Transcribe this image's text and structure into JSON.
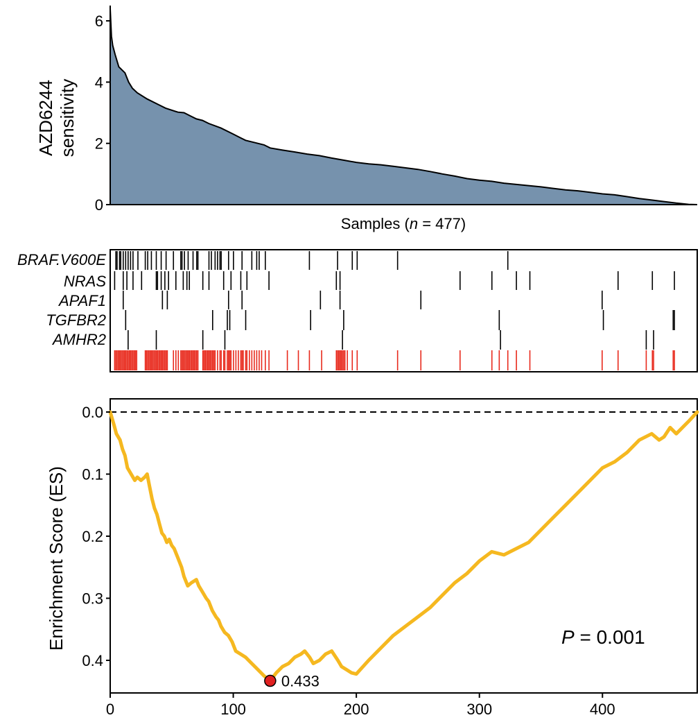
{
  "colors": {
    "sensitivity_fill": "#7692ad",
    "mutation_tick": "#000000",
    "combined_tick": "#e8291c",
    "es_line": "#f5b820",
    "min_point": "#e02020"
  },
  "chart_data": [
    {
      "type": "area",
      "title": "",
      "ylabel_line1": "AZD6244",
      "ylabel_line2": "sensitivity",
      "xlabel_prefix": "Samples (",
      "xlabel_n": "n",
      "xlabel_suffix": " = 477)",
      "n_samples": 477,
      "xlim": [
        0,
        477
      ],
      "ylim": [
        0,
        6.5
      ],
      "yticks": [
        0,
        2,
        4,
        6
      ],
      "ytick_labels": [
        "0",
        "2",
        "4",
        "6"
      ],
      "curve": [
        [
          0,
          6.4
        ],
        [
          1,
          5.5
        ],
        [
          2,
          5.2
        ],
        [
          4,
          4.9
        ],
        [
          7,
          4.5
        ],
        [
          12,
          4.3
        ],
        [
          15,
          4.0
        ],
        [
          18,
          3.8
        ],
        [
          22,
          3.65
        ],
        [
          30,
          3.45
        ],
        [
          40,
          3.25
        ],
        [
          45,
          3.15
        ],
        [
          55,
          3.02
        ],
        [
          60,
          3.0
        ],
        [
          65,
          2.9
        ],
        [
          70,
          2.8
        ],
        [
          75,
          2.75
        ],
        [
          80,
          2.65
        ],
        [
          90,
          2.5
        ],
        [
          100,
          2.3
        ],
        [
          105,
          2.2
        ],
        [
          110,
          2.1
        ],
        [
          118,
          2.02
        ],
        [
          125,
          1.95
        ],
        [
          130,
          1.85
        ],
        [
          140,
          1.78
        ],
        [
          150,
          1.72
        ],
        [
          160,
          1.65
        ],
        [
          170,
          1.6
        ],
        [
          180,
          1.52
        ],
        [
          190,
          1.45
        ],
        [
          200,
          1.38
        ],
        [
          210,
          1.33
        ],
        [
          220,
          1.3
        ],
        [
          230,
          1.25
        ],
        [
          240,
          1.2
        ],
        [
          250,
          1.15
        ],
        [
          260,
          1.08
        ],
        [
          270,
          1.0
        ],
        [
          280,
          0.93
        ],
        [
          290,
          0.85
        ],
        [
          300,
          0.8
        ],
        [
          310,
          0.76
        ],
        [
          320,
          0.7
        ],
        [
          330,
          0.66
        ],
        [
          340,
          0.62
        ],
        [
          350,
          0.58
        ],
        [
          360,
          0.53
        ],
        [
          370,
          0.48
        ],
        [
          380,
          0.45
        ],
        [
          390,
          0.4
        ],
        [
          400,
          0.35
        ],
        [
          410,
          0.32
        ],
        [
          420,
          0.26
        ],
        [
          430,
          0.2
        ],
        [
          440,
          0.15
        ],
        [
          450,
          0.1
        ],
        [
          460,
          0.05
        ],
        [
          470,
          0.01
        ],
        [
          477,
          0.0
        ]
      ]
    },
    {
      "type": "heatmap",
      "rows": [
        {
          "label": "BRAF.V600E",
          "positions": [
            3,
            4,
            6,
            7,
            9,
            11,
            13,
            15,
            17,
            21,
            27,
            29,
            32,
            36,
            40,
            44,
            50,
            56,
            57,
            59,
            62,
            66,
            69,
            70,
            79,
            81,
            84,
            86,
            88,
            89,
            95,
            99,
            106,
            114,
            118,
            120,
            125,
            161,
            184,
            196,
            200,
            233,
            323
          ]
        },
        {
          "label": "NRAS",
          "positions": [
            2,
            9,
            12,
            17,
            24,
            36,
            37,
            40,
            43,
            46,
            52,
            58,
            61,
            63,
            74,
            79,
            91,
            97,
            105,
            110,
            128,
            183,
            186,
            284,
            310,
            330,
            341,
            413,
            441,
            459
          ]
        },
        {
          "label": "APAF1",
          "positions": [
            9,
            41,
            45,
            95,
            106,
            170,
            186,
            252,
            400
          ]
        },
        {
          "label": "TGFBR2",
          "positions": [
            11,
            82,
            94,
            96,
            109,
            162,
            189,
            316,
            401,
            458,
            459
          ]
        },
        {
          "label": "AMHR2",
          "positions": [
            13,
            36,
            74,
            92,
            188,
            317,
            436,
            442
          ]
        },
        {
          "label": "",
          "combined": true,
          "positions": [
            2,
            3,
            4,
            5,
            6,
            7,
            8,
            9,
            10,
            11,
            12,
            13,
            14,
            15,
            16,
            17,
            18,
            19,
            20,
            27,
            28,
            29,
            30,
            31,
            32,
            33,
            34,
            35,
            36,
            37,
            38,
            39,
            40,
            41,
            42,
            43,
            44,
            45,
            50,
            52,
            54,
            56,
            57,
            58,
            59,
            60,
            61,
            62,
            63,
            64,
            65,
            66,
            67,
            68,
            69,
            70,
            74,
            75,
            76,
            77,
            78,
            79,
            80,
            81,
            82,
            83,
            84,
            86,
            88,
            89,
            91,
            92,
            94,
            95,
            96,
            97,
            99,
            101,
            103,
            105,
            106,
            107,
            109,
            110,
            112,
            114,
            116,
            118,
            120,
            122,
            125,
            128,
            143,
            152,
            161,
            171,
            183,
            184,
            185,
            186,
            187,
            188,
            189,
            190,
            192,
            196,
            200,
            233,
            252,
            284,
            310,
            316,
            323,
            330,
            341,
            400,
            413,
            436,
            441,
            442,
            458,
            459
          ]
        }
      ]
    },
    {
      "type": "line",
      "ylabel": "Enrichment Score (ES)",
      "xlim": [
        0,
        477
      ],
      "ylim_reversed": [
        0,
        0.45
      ],
      "xticks": [
        0,
        100,
        200,
        300,
        400
      ],
      "xtick_labels": [
        "0",
        "100",
        "200",
        "300",
        "400"
      ],
      "yticks": [
        0,
        0.1,
        0.2,
        0.3,
        0.4
      ],
      "ytick_labels": [
        "0.0",
        "0.1",
        "0.2",
        "0.3",
        "0.4"
      ],
      "reference_line": 0,
      "series": [
        {
          "name": "ES",
          "points": [
            [
              0,
              0.0
            ],
            [
              3,
              0.02
            ],
            [
              5,
              0.035
            ],
            [
              8,
              0.045
            ],
            [
              10,
              0.06
            ],
            [
              12,
              0.07
            ],
            [
              14,
              0.09
            ],
            [
              17,
              0.1
            ],
            [
              20,
              0.11
            ],
            [
              22,
              0.105
            ],
            [
              25,
              0.11
            ],
            [
              28,
              0.105
            ],
            [
              30,
              0.1
            ],
            [
              32,
              0.12
            ],
            [
              34,
              0.14
            ],
            [
              36,
              0.155
            ],
            [
              38,
              0.165
            ],
            [
              40,
              0.18
            ],
            [
              42,
              0.195
            ],
            [
              44,
              0.2
            ],
            [
              46,
              0.21
            ],
            [
              48,
              0.205
            ],
            [
              50,
              0.215
            ],
            [
              52,
              0.22
            ],
            [
              55,
              0.235
            ],
            [
              58,
              0.25
            ],
            [
              60,
              0.265
            ],
            [
              63,
              0.28
            ],
            [
              66,
              0.275
            ],
            [
              70,
              0.27
            ],
            [
              72,
              0.28
            ],
            [
              75,
              0.29
            ],
            [
              78,
              0.3
            ],
            [
              80,
              0.305
            ],
            [
              83,
              0.32
            ],
            [
              86,
              0.33
            ],
            [
              88,
              0.335
            ],
            [
              90,
              0.345
            ],
            [
              93,
              0.355
            ],
            [
              96,
              0.36
            ],
            [
              99,
              0.37
            ],
            [
              102,
              0.385
            ],
            [
              106,
              0.39
            ],
            [
              110,
              0.395
            ],
            [
              115,
              0.405
            ],
            [
              120,
              0.415
            ],
            [
              125,
              0.425
            ],
            [
              130,
              0.433
            ],
            [
              135,
              0.42
            ],
            [
              140,
              0.41
            ],
            [
              145,
              0.405
            ],
            [
              150,
              0.395
            ],
            [
              155,
              0.39
            ],
            [
              158,
              0.385
            ],
            [
              162,
              0.395
            ],
            [
              165,
              0.405
            ],
            [
              170,
              0.4
            ],
            [
              175,
              0.39
            ],
            [
              180,
              0.385
            ],
            [
              185,
              0.4
            ],
            [
              188,
              0.41
            ],
            [
              192,
              0.415
            ],
            [
              196,
              0.42
            ],
            [
              200,
              0.422
            ],
            [
              210,
              0.4
            ],
            [
              220,
              0.38
            ],
            [
              230,
              0.36
            ],
            [
              240,
              0.345
            ],
            [
              250,
              0.33
            ],
            [
              260,
              0.315
            ],
            [
              270,
              0.295
            ],
            [
              280,
              0.275
            ],
            [
              290,
              0.26
            ],
            [
              300,
              0.24
            ],
            [
              310,
              0.225
            ],
            [
              320,
              0.23
            ],
            [
              330,
              0.22
            ],
            [
              340,
              0.21
            ],
            [
              350,
              0.19
            ],
            [
              360,
              0.17
            ],
            [
              370,
              0.15
            ],
            [
              380,
              0.13
            ],
            [
              390,
              0.11
            ],
            [
              400,
              0.09
            ],
            [
              410,
              0.08
            ],
            [
              420,
              0.065
            ],
            [
              430,
              0.045
            ],
            [
              440,
              0.035
            ],
            [
              446,
              0.045
            ],
            [
              450,
              0.04
            ],
            [
              455,
              0.025
            ],
            [
              460,
              0.035
            ],
            [
              470,
              0.015
            ],
            [
              477,
              0.0
            ]
          ]
        }
      ],
      "min_marker": {
        "x": 130,
        "y": 0.433,
        "label": "0.433"
      },
      "p_letter": "P",
      "p_rest": " = 0.001"
    }
  ]
}
